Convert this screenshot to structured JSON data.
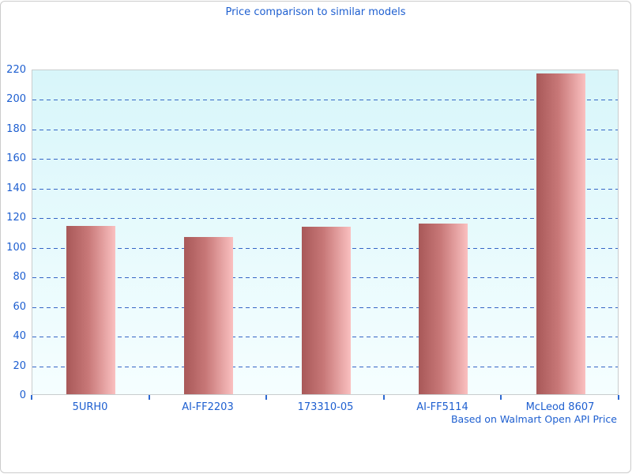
{
  "chart_data": {
    "type": "bar",
    "title": "Price comparison to similar models",
    "source_note": "Based on Walmart Open API Price",
    "categories": [
      "5URH0",
      "AI-FF2203",
      "173310-05",
      "AI-FF5114",
      "McLeod 8607"
    ],
    "values": [
      113.5,
      106.5,
      113,
      115.5,
      217
    ],
    "xlabel": "",
    "ylabel": "",
    "ylim": [
      0,
      220
    ],
    "ytick_step": 20,
    "ytick_labels": [
      "0",
      "20",
      "40",
      "60",
      "80",
      "100",
      "120",
      "140",
      "160",
      "180",
      "200",
      "220"
    ],
    "grid": "horizontal-dashed",
    "legend_position": "none",
    "colors": {
      "text_blue": "#1e5fd0",
      "gridline_blue": "#3565c5",
      "tick_blue": "#2e6ad2",
      "plot_bg_top": "#d8f6fa",
      "plot_bg_bottom": "#f5feff",
      "bar_gradient_dark": "#a85858",
      "bar_gradient_mid": "#c87878",
      "bar_gradient_light": "#fac0c0",
      "frame_border_gray": "#cccccc"
    }
  }
}
